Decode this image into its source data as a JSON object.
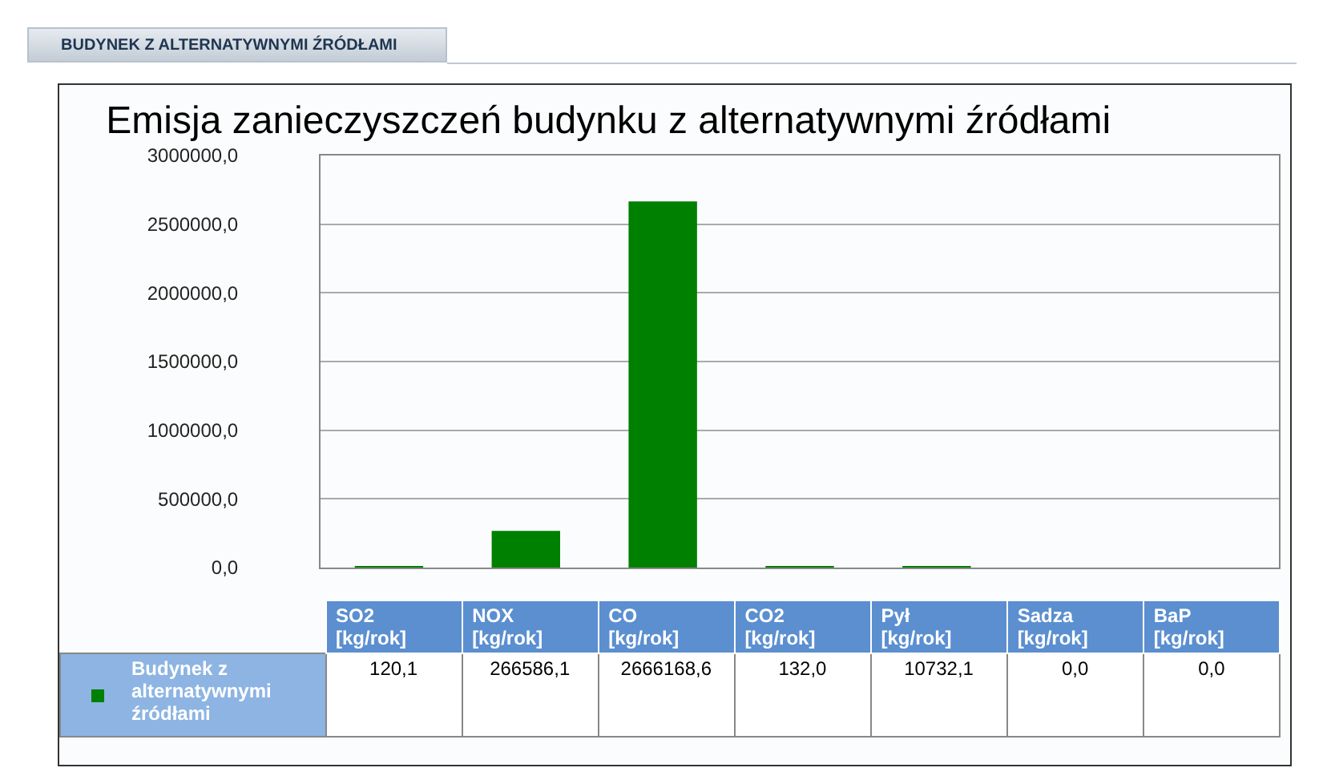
{
  "chart_data": {
    "type": "bar",
    "title": "Emisja zanieczyszczeń budynku z alternatywnymi źródłami",
    "annotations": [
      "BUDYNEK Z ALTERNATYWNYMI ŹRÓDŁAMI"
    ],
    "categories": [
      "SO2 [kg/rok]",
      "NOX [kg/rok]",
      "CO [kg/rok]",
      "CO2 [kg/rok]",
      "Pył [kg/rok]",
      "Sadza [kg/rok]",
      "BaP [kg/rok]"
    ],
    "series": [
      {
        "name": "Budynek z alternatywnymi źródłami",
        "color": "#008000",
        "values": [
          120.1,
          266586.1,
          2666168.6,
          132.0,
          10732.1,
          0.0,
          0.0
        ],
        "value_labels": [
          "120,1",
          "266586,1",
          "2666168,6",
          "132,0",
          "10732,1",
          "0,0",
          "0,0"
        ]
      }
    ],
    "ylim": [
      0,
      3000000
    ],
    "yticks": [
      {
        "value": 0,
        "label": "0,0"
      },
      {
        "value": 500000,
        "label": "500000,0"
      },
      {
        "value": 1000000,
        "label": "1000000,0"
      },
      {
        "value": 1500000,
        "label": "1500000,0"
      },
      {
        "value": 2000000,
        "label": "2000000,0"
      },
      {
        "value": 2500000,
        "label": "2500000,0"
      },
      {
        "value": 3000000,
        "label": "3000000,0"
      }
    ],
    "grid": "y",
    "tick_labels": "y"
  }
}
